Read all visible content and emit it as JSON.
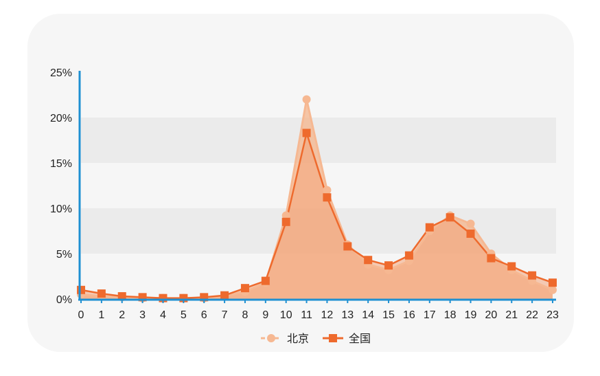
{
  "chart_data": {
    "type": "area",
    "categories": [
      "0",
      "1",
      "2",
      "3",
      "4",
      "5",
      "6",
      "7",
      "8",
      "9",
      "10",
      "11",
      "12",
      "13",
      "14",
      "15",
      "16",
      "17",
      "18",
      "19",
      "20",
      "21",
      "22",
      "23"
    ],
    "yticks": [
      "0%",
      "5%",
      "10%",
      "15%",
      "20%",
      "25%"
    ],
    "ylim": [
      0,
      25
    ],
    "y_unit": "%",
    "grid": "horizontal bands",
    "legend_position": "bottom",
    "series": [
      {
        "name": "北京",
        "marker": "circle",
        "color": "#f6b892",
        "values": [
          0.5,
          0.3,
          0.2,
          0.1,
          0.1,
          0.1,
          0.1,
          0.3,
          0.8,
          1.8,
          9.2,
          22.0,
          12.0,
          6.0,
          3.8,
          3.2,
          4.2,
          7.5,
          9.2,
          8.3,
          5.0,
          3.2,
          2.0,
          1.0
        ]
      },
      {
        "name": "全国",
        "marker": "square",
        "color": "#ee6a2d",
        "values": [
          1.0,
          0.6,
          0.3,
          0.2,
          0.1,
          0.1,
          0.2,
          0.4,
          1.2,
          2.0,
          8.5,
          18.3,
          11.2,
          5.8,
          4.3,
          3.7,
          4.8,
          7.9,
          9.0,
          7.2,
          4.5,
          3.6,
          2.6,
          1.8
        ]
      }
    ]
  }
}
